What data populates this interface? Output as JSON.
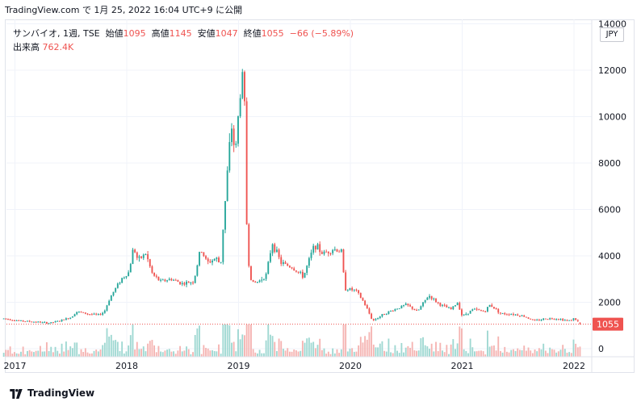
{
  "header": {
    "capture_text": "TradingView.com で 1月 25, 2022 16:04 UTC+9 に公開"
  },
  "legend": {
    "symbol": "サンバイオ, 1週, TSE",
    "open_label": "始値",
    "open_value": "1095",
    "high_label": "高値",
    "high_value": "1145",
    "low_label": "安値",
    "low_value": "1047",
    "close_label": "終値",
    "close_value": "1055",
    "change": "−66 (−5.89%)",
    "volume_label": "出来高",
    "volume_value": "762.4K"
  },
  "currency": "JPY",
  "footer": {
    "brand": "TradingView"
  },
  "colors": {
    "up": "#26a69a",
    "down": "#ef5350",
    "volume_up": "#9fd8d2",
    "volume_down": "#f5b4b2",
    "grid": "#f0f3fa",
    "price_line": "#ef5350"
  },
  "chart_data": {
    "type": "candlestick",
    "title": "サンバイオ, 1週, TSE",
    "currency": "JPY",
    "ylim": [
      0,
      14000
    ],
    "y_ticks": [
      "0",
      "2000",
      "4000",
      "6000",
      "8000",
      "10000",
      "12000",
      "14000"
    ],
    "x_ticks": [
      "2017",
      "2018",
      "2019",
      "2020",
      "2021",
      "2022"
    ],
    "last_price": "1055",
    "grid": "on",
    "legend_position": "top-left",
    "price_path": [
      {
        "t": 2016.9,
        "p": 1300
      },
      {
        "t": 2017.05,
        "p": 1200
      },
      {
        "t": 2017.2,
        "p": 1150
      },
      {
        "t": 2017.3,
        "p": 1100
      },
      {
        "t": 2017.4,
        "p": 1200
      },
      {
        "t": 2017.5,
        "p": 1350
      },
      {
        "t": 2017.55,
        "p": 1600
      },
      {
        "t": 2017.65,
        "p": 1500
      },
      {
        "t": 2017.75,
        "p": 1450
      },
      {
        "t": 2017.8,
        "p": 1600
      },
      {
        "t": 2017.85,
        "p": 2200
      },
      {
        "t": 2017.95,
        "p": 3000
      },
      {
        "t": 2018.02,
        "p": 3300
      },
      {
        "t": 2018.06,
        "p": 4400
      },
      {
        "t": 2018.1,
        "p": 3800
      },
      {
        "t": 2018.17,
        "p": 4100
      },
      {
        "t": 2018.23,
        "p": 3200
      },
      {
        "t": 2018.3,
        "p": 2900
      },
      {
        "t": 2018.4,
        "p": 3000
      },
      {
        "t": 2018.5,
        "p": 2800
      },
      {
        "t": 2018.6,
        "p": 2900
      },
      {
        "t": 2018.66,
        "p": 4300
      },
      {
        "t": 2018.72,
        "p": 3700
      },
      {
        "t": 2018.8,
        "p": 3900
      },
      {
        "t": 2018.84,
        "p": 3600
      },
      {
        "t": 2018.86,
        "p": 5100
      },
      {
        "t": 2018.89,
        "p": 6900
      },
      {
        "t": 2018.91,
        "p": 8300
      },
      {
        "t": 2018.94,
        "p": 9600
      },
      {
        "t": 2018.97,
        "p": 8300
      },
      {
        "t": 2019.0,
        "p": 10200
      },
      {
        "t": 2019.03,
        "p": 11800
      },
      {
        "t": 2019.05,
        "p": 11600
      },
      {
        "t": 2019.07,
        "p": 5700
      },
      {
        "t": 2019.09,
        "p": 3700
      },
      {
        "t": 2019.12,
        "p": 2800
      },
      {
        "t": 2019.18,
        "p": 2900
      },
      {
        "t": 2019.25,
        "p": 3200
      },
      {
        "t": 2019.3,
        "p": 4600
      },
      {
        "t": 2019.38,
        "p": 3700
      },
      {
        "t": 2019.48,
        "p": 3500
      },
      {
        "t": 2019.58,
        "p": 3100
      },
      {
        "t": 2019.68,
        "p": 4500
      },
      {
        "t": 2019.75,
        "p": 4100
      },
      {
        "t": 2019.85,
        "p": 4300
      },
      {
        "t": 2019.92,
        "p": 4200
      },
      {
        "t": 2019.95,
        "p": 2600
      },
      {
        "t": 2020.05,
        "p": 2500
      },
      {
        "t": 2020.12,
        "p": 2000
      },
      {
        "t": 2020.2,
        "p": 1200
      },
      {
        "t": 2020.3,
        "p": 1500
      },
      {
        "t": 2020.4,
        "p": 1700
      },
      {
        "t": 2020.5,
        "p": 1900
      },
      {
        "t": 2020.6,
        "p": 1600
      },
      {
        "t": 2020.7,
        "p": 2300
      },
      {
        "t": 2020.8,
        "p": 1900
      },
      {
        "t": 2020.9,
        "p": 1700
      },
      {
        "t": 2020.96,
        "p": 2000
      },
      {
        "t": 2021.0,
        "p": 1400
      },
      {
        "t": 2021.1,
        "p": 1700
      },
      {
        "t": 2021.2,
        "p": 1600
      },
      {
        "t": 2021.25,
        "p": 1900
      },
      {
        "t": 2021.35,
        "p": 1500
      },
      {
        "t": 2021.45,
        "p": 1500
      },
      {
        "t": 2021.55,
        "p": 1400
      },
      {
        "t": 2021.65,
        "p": 1200
      },
      {
        "t": 2021.75,
        "p": 1300
      },
      {
        "t": 2021.85,
        "p": 1300
      },
      {
        "t": 2021.95,
        "p": 1200
      },
      {
        "t": 2022.0,
        "p": 1300
      },
      {
        "t": 2022.07,
        "p": 1055
      }
    ]
  }
}
